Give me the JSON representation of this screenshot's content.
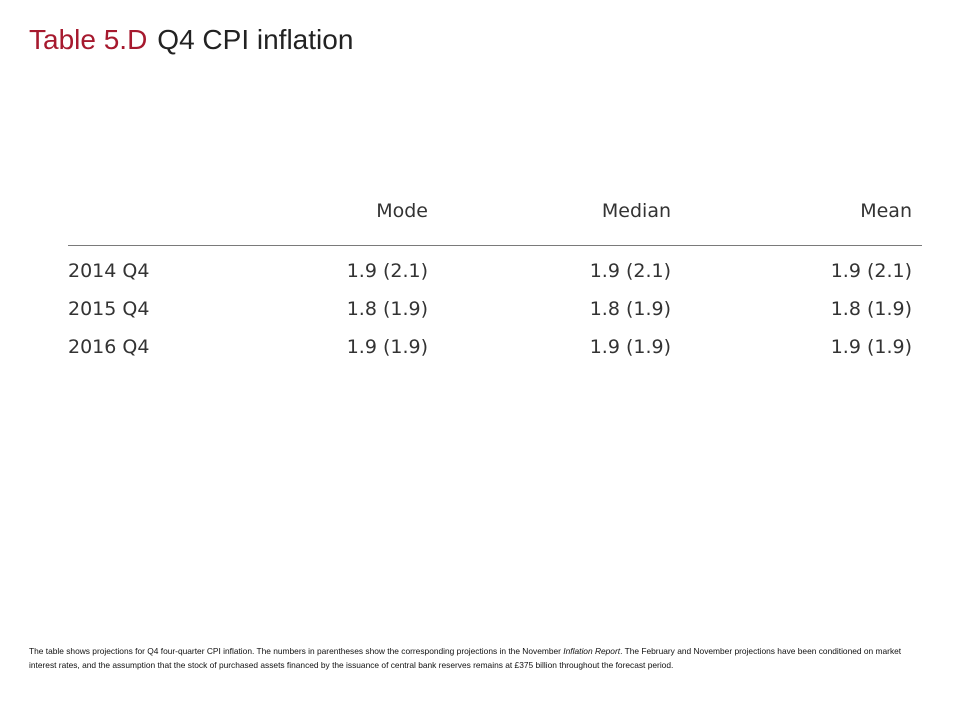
{
  "title": {
    "number": "Table 5.D",
    "text": "Q4 CPI inflation"
  },
  "table": {
    "headers": [
      "",
      "Mode",
      "Median",
      "Mean"
    ],
    "rows": [
      [
        "2014 Q4",
        "1.9 (2.1)",
        "1.9 (2.1)",
        "1.9 (2.1)"
      ],
      [
        "2015 Q4",
        "1.8 (1.9)",
        "1.8 (1.9)",
        "1.8 (1.9)"
      ],
      [
        "2016 Q4",
        "1.9 (1.9)",
        "1.9 (1.9)",
        "1.9 (1.9)"
      ]
    ]
  },
  "footnote": {
    "part1": "The table shows projections for Q4 four-quarter CPI inflation.  The numbers in parentheses show the corresponding projections in the November ",
    "italic": "Inflation Report",
    "part2": ".   The February and November projections have been conditioned on market interest rates, and the assumption that the stock of purchased assets financed by the issuance of central bank reserves remains at £375 billion throughout the forecast period."
  },
  "colors": {
    "title_accent": "#a6192e",
    "text": "#333333",
    "rule": "#7a7a7a"
  }
}
